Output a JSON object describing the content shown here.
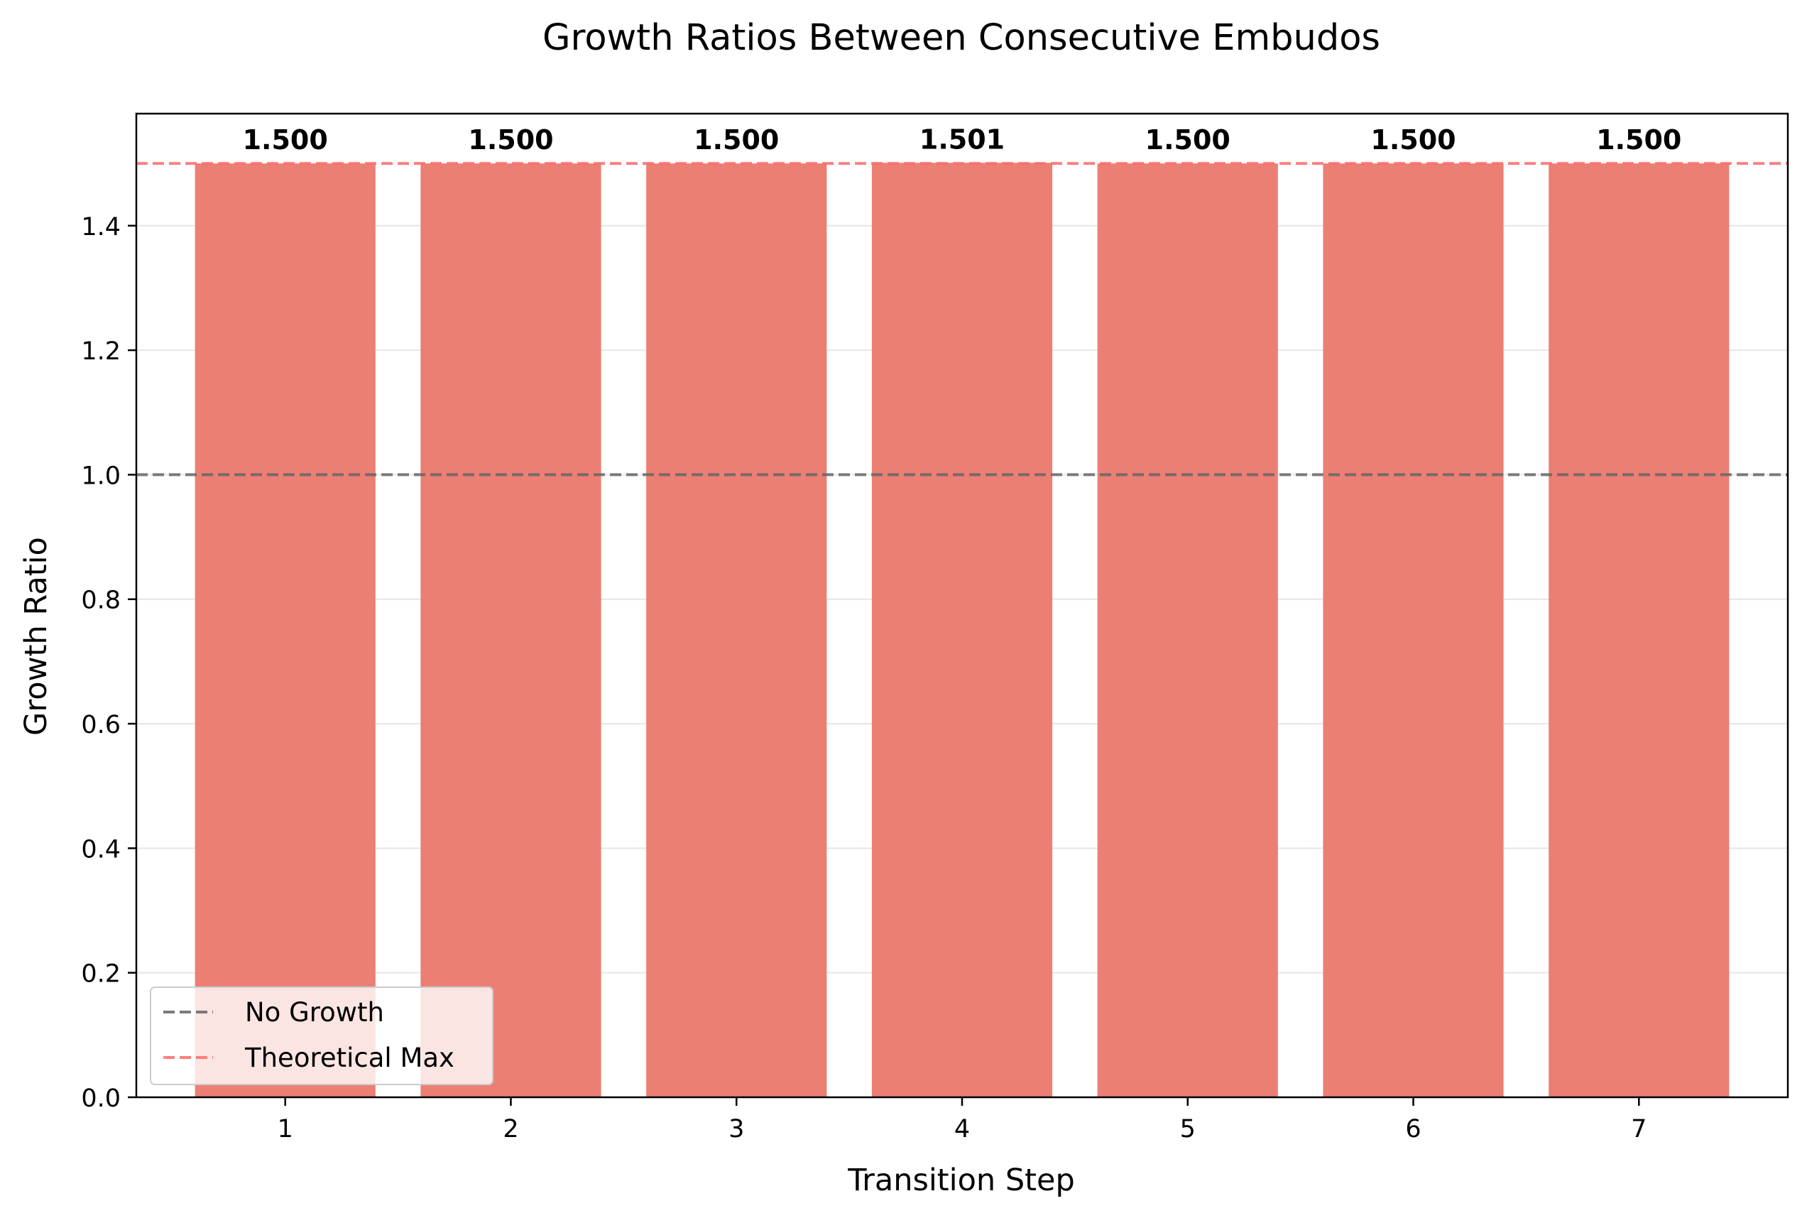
{
  "chart_data": {
    "type": "bar",
    "title": "Growth Ratios Between Consecutive Embudos",
    "xlabel": "Transition Step",
    "ylabel": "Growth Ratio",
    "categories": [
      "1",
      "2",
      "3",
      "4",
      "5",
      "6",
      "7"
    ],
    "values": [
      1.5,
      1.5,
      1.5,
      1.501,
      1.5,
      1.5,
      1.5
    ],
    "value_labels": [
      "1.500",
      "1.500",
      "1.500",
      "1.501",
      "1.500",
      "1.500",
      "1.500"
    ],
    "yticks": [
      "0.0",
      "0.2",
      "0.4",
      "0.6",
      "0.8",
      "1.0",
      "1.2",
      "1.4"
    ],
    "ylim": [
      0,
      1.58
    ],
    "grid": "horizontal",
    "bar_color": "#EC7F74",
    "reference_lines": [
      {
        "name": "No Growth",
        "y": 1.0,
        "color": "#666666",
        "style": "dashed"
      },
      {
        "name": "Theoretical Max",
        "y": 1.5,
        "color": "#FF6B6B",
        "style": "dashed"
      }
    ],
    "legend_position": "lower-left"
  }
}
